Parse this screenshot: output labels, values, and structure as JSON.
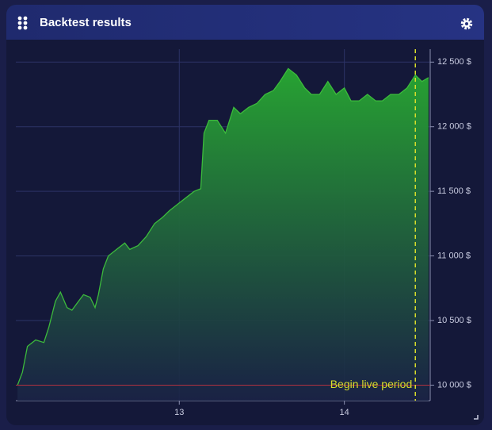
{
  "chart_data": {
    "type": "area",
    "title": "Backtest results",
    "x": [
      12.02,
      12.05,
      12.08,
      12.13,
      12.18,
      12.21,
      12.25,
      12.28,
      12.32,
      12.35,
      12.39,
      12.42,
      12.46,
      12.49,
      12.51,
      12.54,
      12.57,
      12.62,
      12.67,
      12.7,
      12.75,
      12.8,
      12.85,
      12.9,
      12.94,
      12.99,
      13.04,
      13.09,
      13.13,
      13.15,
      13.18,
      13.23,
      13.28,
      13.33,
      13.37,
      13.42,
      13.47,
      13.52,
      13.57,
      13.61,
      13.66,
      13.71,
      13.76,
      13.8,
      13.85,
      13.9,
      13.95,
      14.0,
      14.04,
      14.09,
      14.14,
      14.19,
      14.23,
      14.28,
      14.33,
      14.38,
      14.43,
      14.47,
      14.51
    ],
    "values": [
      10000,
      10100,
      10300,
      10350,
      10330,
      10450,
      10650,
      10720,
      10600,
      10580,
      10650,
      10700,
      10680,
      10600,
      10700,
      10900,
      11000,
      11050,
      11100,
      11050,
      11080,
      11150,
      11250,
      11300,
      11350,
      11400,
      11450,
      11500,
      11520,
      11950,
      12050,
      12050,
      11950,
      12150,
      12100,
      12150,
      12180,
      12250,
      12280,
      12350,
      12450,
      12400,
      12300,
      12250,
      12250,
      12350,
      12250,
      12300,
      12200,
      12200,
      12250,
      12200,
      12200,
      12250,
      12250,
      12300,
      12400,
      12350,
      12380
    ],
    "color": "#3cba3c",
    "baseline": 10000,
    "baseline_color": "#b0313f",
    "annotation": {
      "text": "Begin live period",
      "x": 14.43,
      "color": "#d7dc2a"
    },
    "xlim": [
      12.01,
      14.52
    ],
    "xticks": [
      13,
      14
    ],
    "ylim": [
      9880,
      12600
    ],
    "yticks": [
      {
        "value": 10000,
        "label": "10 000 $"
      },
      {
        "value": 10500,
        "label": "10 500 $"
      },
      {
        "value": 11000,
        "label": "11 000 $"
      },
      {
        "value": 11500,
        "label": "11 500 $"
      },
      {
        "value": 12000,
        "label": "12 000 $"
      },
      {
        "value": 12500,
        "label": "12 500 $"
      }
    ],
    "grid": true
  }
}
